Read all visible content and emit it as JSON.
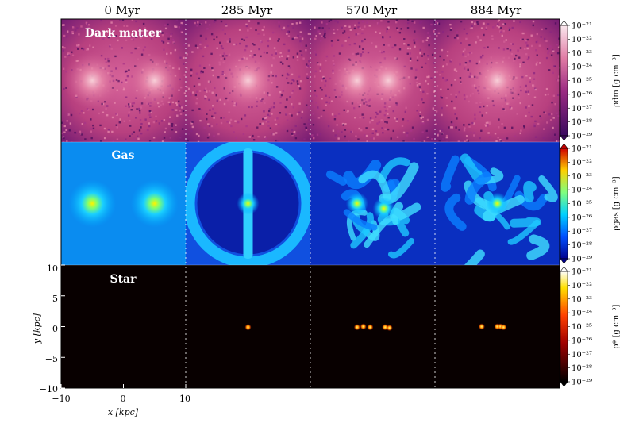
{
  "figure": {
    "columns": [
      "0 Myr",
      "285 Myr",
      "570 Myr",
      "884 Myr"
    ],
    "rows": [
      {
        "name": "Dark matter",
        "colorbar_label": "ρdm [g cm⁻³]",
        "colormap": "magenta"
      },
      {
        "name": "Gas",
        "colorbar_label": "ρgas [g cm⁻³]",
        "colormap": "jet"
      },
      {
        "name": "Star",
        "colorbar_label": "ρ* [g cm⁻³]",
        "colormap": "hot"
      }
    ],
    "colorbar_ticks": [
      "10⁻²¹",
      "10⁻²²",
      "10⁻²³",
      "10⁻²⁴",
      "10⁻²⁵",
      "10⁻²⁶",
      "10⁻²⁷",
      "10⁻²⁸",
      "10⁻²⁹"
    ]
  },
  "chart_data": {
    "type": "heatmap",
    "title": "",
    "panels": "3 rows × 4 columns of projected density maps",
    "xlabel": "x [kpc]",
    "ylabel": "y [kpc]",
    "xlim": [
      -10,
      10
    ],
    "ylim": [
      -10,
      10
    ],
    "xticks": [
      "−10",
      "0",
      "10"
    ],
    "yticks": [
      "10",
      "5",
      "0",
      "−5",
      "−10"
    ],
    "colorbar_range_log": [
      -29,
      -21
    ],
    "colors": {
      "dm_low": "#5a0f6e",
      "dm_mid": "#c0407f",
      "dm_high": "#f6c9d5",
      "gas_low": "#00209a",
      "gas_mid": "#00b4ff",
      "gas_high": "#ffea00",
      "star_low": "#000000",
      "star_mid": "#ff2200",
      "star_high": "#ffff66"
    },
    "snapshots": [
      {
        "time": "0 Myr",
        "dark_matter_peaks": [
          {
            "x": -5,
            "y": 0
          },
          {
            "x": 5,
            "y": 0
          }
        ],
        "gas_peaks": [
          {
            "x": -5,
            "y": 0
          },
          {
            "x": 5,
            "y": 0
          }
        ],
        "star_clumps": []
      },
      {
        "time": "285 Myr",
        "dark_matter_peaks": [
          {
            "x": 0,
            "y": 0
          }
        ],
        "gas_peaks": [
          {
            "x": 0,
            "y": 0
          }
        ],
        "star_clumps": [
          {
            "x": 0,
            "y": -0.1
          }
        ]
      },
      {
        "time": "570 Myr",
        "dark_matter_peaks": [
          {
            "x": -2.5,
            "y": 0
          },
          {
            "x": 2.5,
            "y": 0
          }
        ],
        "gas_peaks": [
          {
            "x": -2.5,
            "y": 0
          },
          {
            "x": 1.8,
            "y": -0.8
          }
        ],
        "star_clumps": [
          {
            "x": -2.5,
            "y": -0.1
          },
          {
            "x": -1.5,
            "y": 0
          },
          {
            "x": -0.4,
            "y": -0.1
          },
          {
            "x": 2.0,
            "y": -0.1
          },
          {
            "x": 2.7,
            "y": -0.2
          }
        ]
      },
      {
        "time": "884 Myr",
        "dark_matter_peaks": [
          {
            "x": 0,
            "y": 0
          }
        ],
        "gas_peaks": [
          {
            "x": 0,
            "y": 0
          }
        ],
        "star_clumps": [
          {
            "x": -2.5,
            "y": 0
          },
          {
            "x": 0,
            "y": 0
          },
          {
            "x": 0.5,
            "y": 0
          },
          {
            "x": 1.0,
            "y": -0.1
          }
        ]
      }
    ]
  }
}
